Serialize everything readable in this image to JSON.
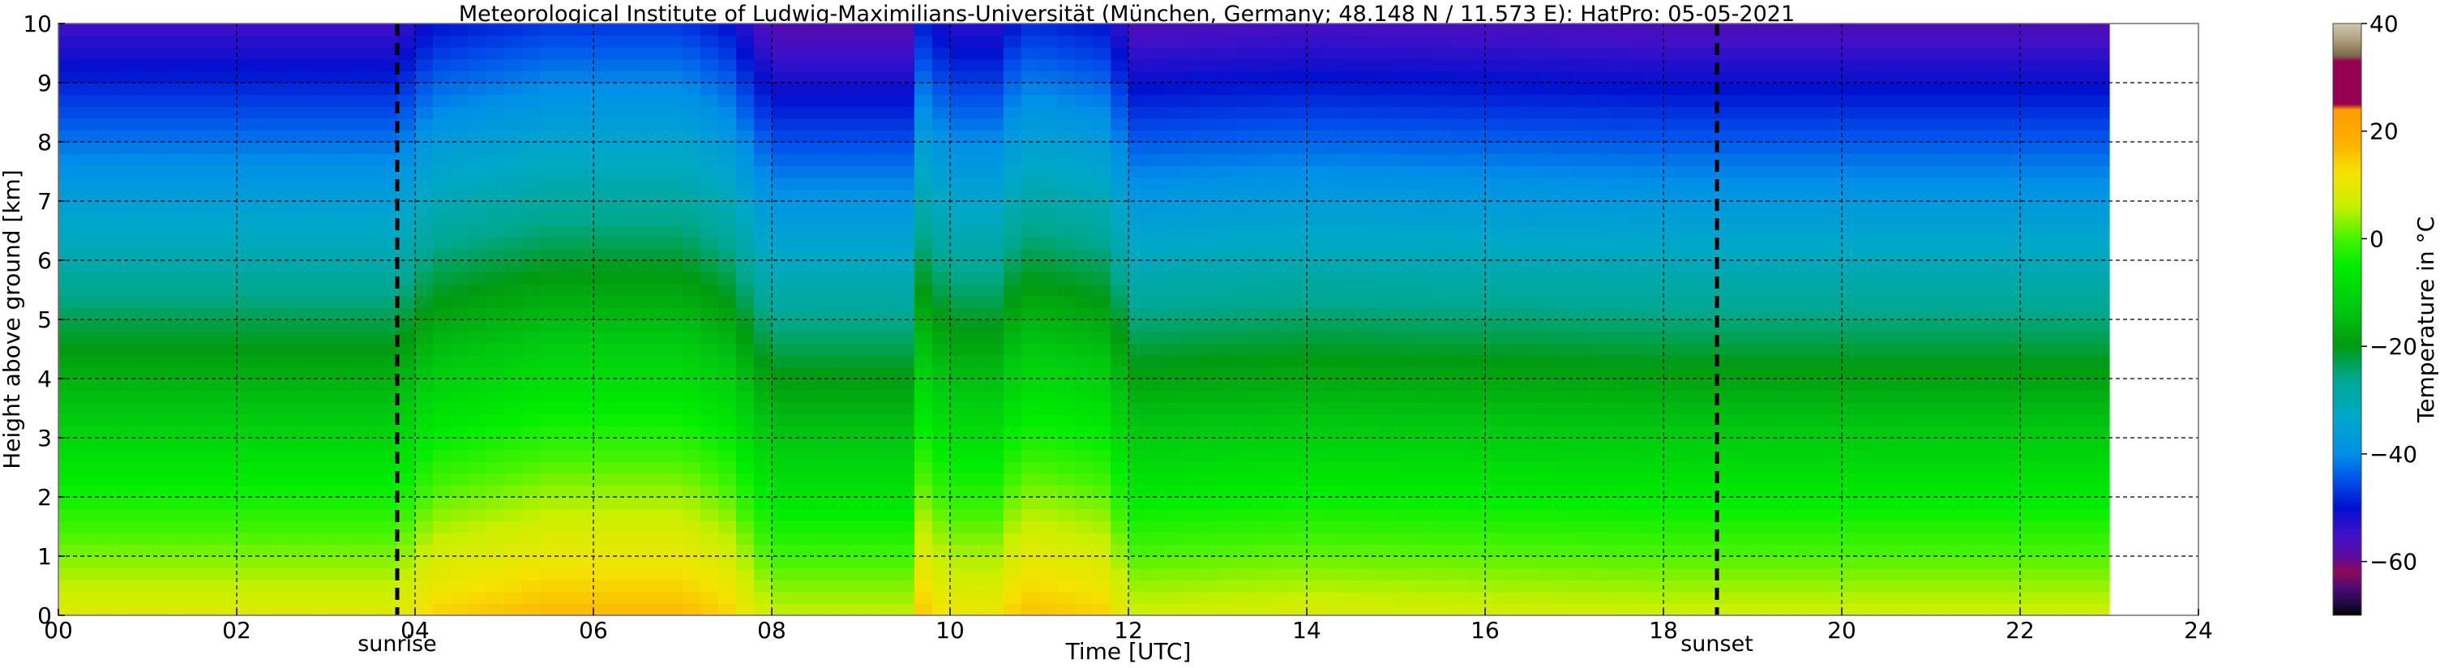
{
  "chart_data": {
    "type": "heatmap",
    "title": "Meteorological Institute of Ludwig-Maximilians-Universität (München, Germany; 48.148 N / 11.573 E):    HatPro: 05-05-2021",
    "xlabel": "Time [UTC]",
    "ylabel": "Height above ground [km]",
    "colorbar_label": "Temperature in °C",
    "xlim": [
      0,
      24
    ],
    "ylim": [
      0,
      10
    ],
    "clim": [
      -70,
      40
    ],
    "data_end_hour": 23,
    "x_ticks": [
      0,
      2,
      4,
      6,
      8,
      10,
      12,
      14,
      16,
      18,
      20,
      22,
      24
    ],
    "x_tick_labels": [
      "00",
      "02",
      "04",
      "06",
      "08",
      "10",
      "12",
      "14",
      "16",
      "18",
      "20",
      "22",
      "24"
    ],
    "y_ticks": [
      0,
      1,
      2,
      3,
      4,
      5,
      6,
      7,
      8,
      9,
      10
    ],
    "y_tick_labels": [
      "0",
      "1",
      "2",
      "3",
      "4",
      "5",
      "6",
      "7",
      "8",
      "9",
      "10"
    ],
    "colorbar_ticks": [
      -60,
      -40,
      -20,
      0,
      20,
      40
    ],
    "colorbar_tick_labels": [
      "−60",
      "−40",
      "−20",
      "0",
      "20",
      "40"
    ],
    "markers": [
      {
        "label": "sunrise",
        "hour": 3.8
      },
      {
        "label": "sunset",
        "hour": 18.6
      }
    ],
    "surface_temperature_profile": {
      "hours": [
        0,
        3.8,
        4.2,
        5.5,
        7.0,
        7.5,
        8.0,
        9.5,
        9.7,
        10.0,
        10.5,
        10.8,
        11.0,
        11.8,
        12.0,
        14.0,
        18.0,
        22.0,
        23.0
      ],
      "surface_temp_c": [
        9,
        9,
        14,
        17,
        17,
        14,
        6,
        6,
        15,
        11,
        11,
        16,
        16,
        14,
        7,
        8,
        7,
        7,
        7
      ]
    },
    "lapse_rate_c_per_km": 6.4,
    "colormap": [
      {
        "value": -70,
        "color": "#000000"
      },
      {
        "value": -68,
        "color": "#1f0a3d"
      },
      {
        "value": -65,
        "color": "#4b0a78"
      },
      {
        "value": -62,
        "color": "#8b0a55"
      },
      {
        "value": -59,
        "color": "#5a0aa0"
      },
      {
        "value": -55,
        "color": "#4010c8"
      },
      {
        "value": -50,
        "color": "#0010d0"
      },
      {
        "value": -45,
        "color": "#0050ea"
      },
      {
        "value": -40,
        "color": "#0090e8"
      },
      {
        "value": -33,
        "color": "#00a8c8"
      },
      {
        "value": -26,
        "color": "#00a890"
      },
      {
        "value": -20,
        "color": "#009a10"
      },
      {
        "value": -13,
        "color": "#00c810"
      },
      {
        "value": -5,
        "color": "#00ee00"
      },
      {
        "value": 0,
        "color": "#44f400"
      },
      {
        "value": 6,
        "color": "#c8f000"
      },
      {
        "value": 12,
        "color": "#f4e400"
      },
      {
        "value": 18,
        "color": "#ffae00"
      },
      {
        "value": 24,
        "color": "#ff9c00"
      },
      {
        "value": 25,
        "color": "#960050"
      },
      {
        "value": 33,
        "color": "#960050"
      },
      {
        "value": 34,
        "color": "#7a6a4a"
      },
      {
        "value": 37,
        "color": "#b0a080"
      },
      {
        "value": 40,
        "color": "#d0c8b0"
      }
    ]
  }
}
